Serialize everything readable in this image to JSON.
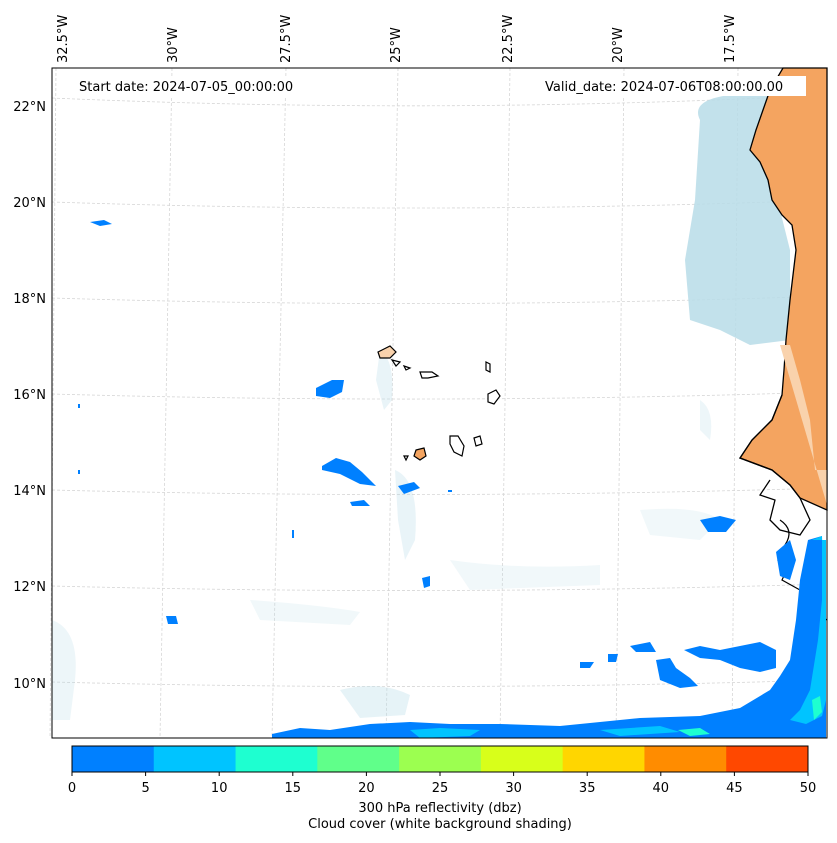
{
  "header": {
    "start_date": "Start date: 2024-07-05_00:00:00",
    "valid_date": "Valid_date: 2024-07-06T08:00:00.00"
  },
  "axes": {
    "lon_labels": [
      "32.5°W",
      "30°W",
      "27.5°W",
      "25°W",
      "22.5°W",
      "20°W",
      "17.5°W"
    ],
    "lat_labels": [
      "22°N",
      "20°N",
      "18°N",
      "16°N",
      "14°N",
      "12°N",
      "10°N"
    ]
  },
  "colorbar": {
    "ticks": [
      "0",
      "5",
      "10",
      "15",
      "20",
      "25",
      "30",
      "35",
      "40",
      "45",
      "50"
    ],
    "colors": [
      "#0080ff",
      "#00c4ff",
      "#1effd0",
      "#60ff8a",
      "#9cff50",
      "#d8ff1a",
      "#ffd600",
      "#ff8c00",
      "#ff4800"
    ],
    "label_line1": "300 hPa reflectivity (dbz)",
    "label_line2": "Cloud cover (white background shading)"
  },
  "colors": {
    "land": "#f4a460",
    "cloud": "#b7dce8",
    "reflectivity_low": "#0080ff",
    "reflectivity_mid": "#00c4ff",
    "reflectivity_high": "#1effd0"
  }
}
